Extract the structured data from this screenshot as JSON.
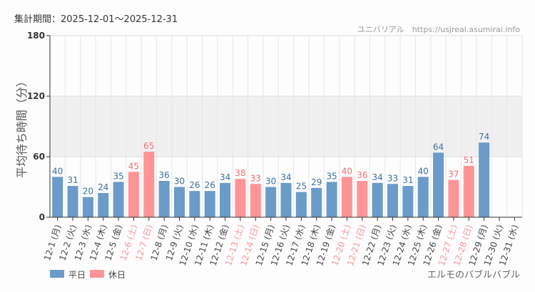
{
  "period_label": "集計期間：2025-12-01～2025-12-31",
  "source": "ユニバリアル　https://usjreal.asumirai.info",
  "attraction": "エルモのバブルバブル",
  "colors": {
    "weekday": "#6b9bc8",
    "holiday": "#ff9497",
    "weekday_text": "#3d6fa6",
    "holiday_text": "#f07075",
    "band": "#f0f0f0"
  },
  "chart_data": {
    "type": "bar",
    "ylabel": "平均待ち時間（分）",
    "ylim": [
      0,
      180
    ],
    "yticks": [
      0,
      60,
      120,
      180
    ],
    "shaded_band": [
      60,
      120
    ],
    "grid": true,
    "legend_position": "bottom-left",
    "legend": [
      {
        "name": "平日",
        "key": "weekday"
      },
      {
        "name": "休日",
        "key": "holiday"
      }
    ],
    "categories": [
      "12-1 (月)",
      "12-2 (火)",
      "12-3 (水)",
      "12-4 (木)",
      "12-5 (金)",
      "12-6 (土)",
      "12-7 (日)",
      "12-8 (月)",
      "12-9 (火)",
      "12-10 (水)",
      "12-11 (木)",
      "12-12 (金)",
      "12-13 (土)",
      "12-14 (日)",
      "12-15 (月)",
      "12-16 (火)",
      "12-17 (水)",
      "12-18 (木)",
      "12-19 (金)",
      "12-20 (土)",
      "12-21 (日)",
      "12-22 (月)",
      "12-23 (火)",
      "12-24 (水)",
      "12-25 (木)",
      "12-26 (金)",
      "12-27 (土)",
      "12-28 (日)",
      "12-29 (月)",
      "12-30 (火)",
      "12-31 (水)"
    ],
    "values": [
      40,
      31,
      20,
      24,
      35,
      45,
      65,
      36,
      30,
      26,
      26,
      34,
      38,
      33,
      30,
      34,
      25,
      29,
      35,
      40,
      36,
      34,
      33,
      31,
      40,
      64,
      37,
      51,
      74,
      null,
      null
    ],
    "holiday": [
      false,
      false,
      false,
      false,
      false,
      true,
      true,
      false,
      false,
      false,
      false,
      false,
      true,
      true,
      false,
      false,
      false,
      false,
      false,
      true,
      true,
      false,
      false,
      false,
      false,
      false,
      true,
      true,
      false,
      false,
      false
    ]
  }
}
